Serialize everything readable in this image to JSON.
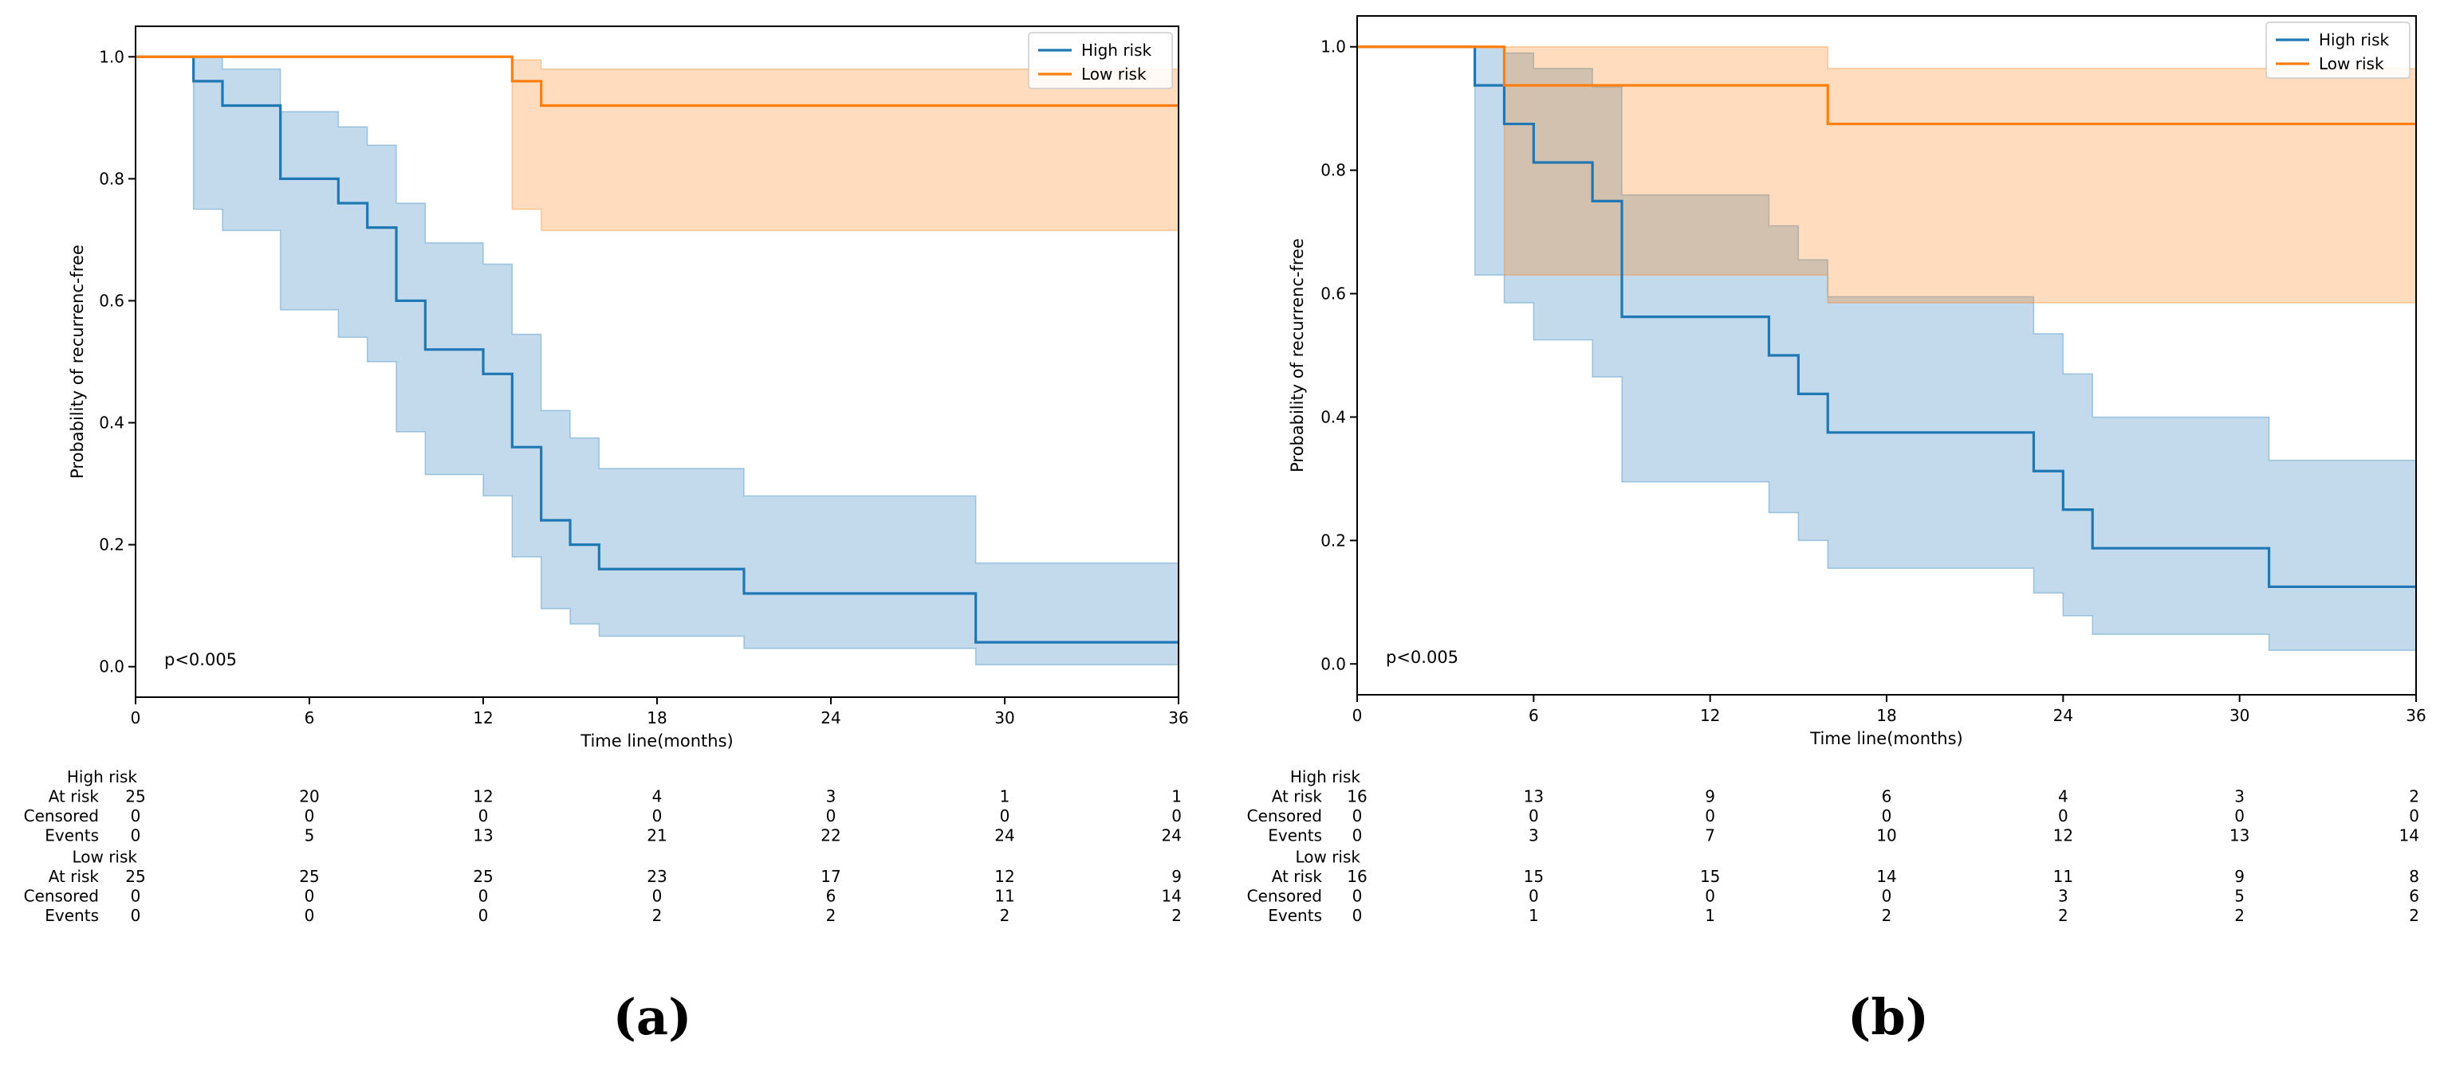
{
  "colors": {
    "high": "#1f77b4",
    "low": "#ff7f0e",
    "high_band": "#c4dcee",
    "low_band": "#ffdcbd",
    "overlap_band": "#d9bfb0"
  },
  "chart_data": [
    {
      "type": "line",
      "panel_label": "(a)",
      "xlabel": "Time line(months)",
      "ylabel": "Probability of recurrenc-free",
      "xlim": [
        0,
        36
      ],
      "ylim": [
        -0.05,
        1.05
      ],
      "xticks": [
        0,
        6,
        12,
        18,
        24,
        30,
        36
      ],
      "yticks": [
        0.0,
        0.2,
        0.4,
        0.6,
        0.8,
        1.0
      ],
      "pvalue": "p<0.005",
      "legend": {
        "placement": "top-right",
        "entries": [
          "High risk",
          "Low risk"
        ]
      },
      "series": [
        {
          "name": "High risk",
          "color_key": "high",
          "steps": [
            [
              0,
              1.0
            ],
            [
              2,
              0.96
            ],
            [
              3,
              0.92
            ],
            [
              5,
              0.8
            ],
            [
              7,
              0.76
            ],
            [
              8,
              0.72
            ],
            [
              9,
              0.6
            ],
            [
              10,
              0.52
            ],
            [
              12,
              0.48
            ],
            [
              13,
              0.36
            ],
            [
              14,
              0.24
            ],
            [
              15,
              0.2
            ],
            [
              16,
              0.16
            ],
            [
              21,
              0.12
            ],
            [
              29,
              0.04
            ],
            [
              36,
              0.04
            ]
          ],
          "ci_upper": [
            [
              0,
              1.0
            ],
            [
              2,
              1.0
            ],
            [
              3,
              0.98
            ],
            [
              5,
              0.91
            ],
            [
              7,
              0.885
            ],
            [
              8,
              0.855
            ],
            [
              9,
              0.76
            ],
            [
              10,
              0.695
            ],
            [
              12,
              0.66
            ],
            [
              13,
              0.545
            ],
            [
              14,
              0.42
            ],
            [
              15,
              0.375
            ],
            [
              16,
              0.325
            ],
            [
              21,
              0.28
            ],
            [
              29,
              0.17
            ],
            [
              36,
              0.17
            ]
          ],
          "ci_lower": [
            [
              0,
              1.0
            ],
            [
              2,
              0.75
            ],
            [
              3,
              0.715
            ],
            [
              5,
              0.585
            ],
            [
              7,
              0.54
            ],
            [
              8,
              0.5
            ],
            [
              9,
              0.385
            ],
            [
              10,
              0.315
            ],
            [
              12,
              0.28
            ],
            [
              13,
              0.18
            ],
            [
              14,
              0.095
            ],
            [
              15,
              0.07
            ],
            [
              16,
              0.05
            ],
            [
              21,
              0.03
            ],
            [
              29,
              0.003
            ],
            [
              36,
              0.003
            ]
          ]
        },
        {
          "name": "Low risk",
          "color_key": "low",
          "steps": [
            [
              0,
              1.0
            ],
            [
              13,
              0.96
            ],
            [
              14,
              0.92
            ],
            [
              36,
              0.92
            ]
          ],
          "ci_upper": [
            [
              0,
              1.0
            ],
            [
              13,
              0.995
            ],
            [
              14,
              0.98
            ],
            [
              36,
              0.98
            ]
          ],
          "ci_lower": [
            [
              0,
              1.0
            ],
            [
              13,
              0.75
            ],
            [
              14,
              0.715
            ],
            [
              36,
              0.715
            ]
          ]
        }
      ],
      "risk_table": {
        "timepoints": [
          0,
          6,
          12,
          18,
          24,
          30,
          36
        ],
        "groups": [
          {
            "name": "High risk",
            "rows": [
              {
                "label": "At risk",
                "values": [
                  "25",
                  "20",
                  "12",
                  "4",
                  "3",
                  "1",
                  "1"
                ]
              },
              {
                "label": "Censored",
                "values": [
                  "0",
                  "0",
                  "0",
                  "0",
                  "0",
                  "0",
                  "0"
                ]
              },
              {
                "label": "Events",
                "values": [
                  "0",
                  "5",
                  "13",
                  "21",
                  "22",
                  "24",
                  "24"
                ]
              }
            ]
          },
          {
            "name": "Low risk",
            "rows": [
              {
                "label": "At risk",
                "values": [
                  "25",
                  "25",
                  "25",
                  "23",
                  "17",
                  "12",
                  "9"
                ]
              },
              {
                "label": "Censored",
                "values": [
                  "0",
                  "0",
                  "0",
                  "0",
                  "6",
                  "11",
                  "14"
                ]
              },
              {
                "label": "Events",
                "values": [
                  "0",
                  "0",
                  "0",
                  "2",
                  "2",
                  "2",
                  "2"
                ]
              }
            ]
          }
        ]
      }
    },
    {
      "type": "line",
      "panel_label": "(b)",
      "xlabel": "Time line(months)",
      "ylabel": "Probability of recurrenc-free",
      "xlim": [
        0,
        36
      ],
      "ylim": [
        -0.05,
        1.05
      ],
      "xticks": [
        0,
        6,
        12,
        18,
        24,
        30,
        36
      ],
      "yticks": [
        0.0,
        0.2,
        0.4,
        0.6,
        0.8,
        1.0
      ],
      "pvalue": "p<0.005",
      "legend": {
        "placement": "top-right",
        "entries": [
          "High risk",
          "Low risk"
        ]
      },
      "series": [
        {
          "name": "High risk",
          "color_key": "high",
          "steps": [
            [
              0,
              1.0
            ],
            [
              4,
              0.9375
            ],
            [
              5,
              0.875
            ],
            [
              6,
              0.8125
            ],
            [
              8,
              0.75
            ],
            [
              9,
              0.5625
            ],
            [
              14,
              0.5
            ],
            [
              15,
              0.4375
            ],
            [
              16,
              0.375
            ],
            [
              23,
              0.3125
            ],
            [
              24,
              0.25
            ],
            [
              25,
              0.1875
            ],
            [
              31,
              0.125
            ],
            [
              36,
              0.125
            ]
          ],
          "ci_upper": [
            [
              0,
              1.0
            ],
            [
              4,
              1.0
            ],
            [
              5,
              0.99
            ],
            [
              6,
              0.965
            ],
            [
              8,
              0.935
            ],
            [
              9,
              0.76
            ],
            [
              14,
              0.71
            ],
            [
              15,
              0.655
            ],
            [
              16,
              0.595
            ],
            [
              23,
              0.535
            ],
            [
              24,
              0.47
            ],
            [
              25,
              0.4
            ],
            [
              31,
              0.33
            ],
            [
              36,
              0.33
            ]
          ],
          "ci_lower": [
            [
              0,
              1.0
            ],
            [
              4,
              0.63
            ],
            [
              5,
              0.585
            ],
            [
              6,
              0.525
            ],
            [
              8,
              0.465
            ],
            [
              9,
              0.295
            ],
            [
              14,
              0.245
            ],
            [
              15,
              0.2
            ],
            [
              16,
              0.155
            ],
            [
              23,
              0.115
            ],
            [
              24,
              0.078
            ],
            [
              25,
              0.048
            ],
            [
              31,
              0.022
            ],
            [
              36,
              0.022
            ]
          ]
        },
        {
          "name": "Low risk",
          "color_key": "low",
          "steps": [
            [
              0,
              1.0
            ],
            [
              5,
              0.9375
            ],
            [
              16,
              0.875
            ],
            [
              36,
              0.875
            ]
          ],
          "ci_upper": [
            [
              0,
              1.0
            ],
            [
              5,
              1.0
            ],
            [
              16,
              0.965
            ],
            [
              36,
              0.965
            ]
          ],
          "ci_lower": [
            [
              0,
              1.0
            ],
            [
              5,
              0.63
            ],
            [
              16,
              0.585
            ],
            [
              36,
              0.585
            ]
          ]
        }
      ],
      "risk_table": {
        "timepoints": [
          0,
          6,
          12,
          18,
          24,
          30,
          36
        ],
        "groups": [
          {
            "name": "High risk",
            "rows": [
              {
                "label": "At risk",
                "values": [
                  "16",
                  "13",
                  "9",
                  "6",
                  "4",
                  "3",
                  "2"
                ]
              },
              {
                "label": "Censored",
                "values": [
                  "0",
                  "0",
                  "0",
                  "0",
                  "0",
                  "0",
                  "0"
                ]
              },
              {
                "label": "Events",
                "values": [
                  "0",
                  "3",
                  "7",
                  "10",
                  "12",
                  "13",
                  "14"
                ]
              }
            ]
          },
          {
            "name": "Low risk",
            "rows": [
              {
                "label": "At risk",
                "values": [
                  "16",
                  "15",
                  "15",
                  "14",
                  "11",
                  "9",
                  "8"
                ]
              },
              {
                "label": "Censored",
                "values": [
                  "0",
                  "0",
                  "0",
                  "0",
                  "3",
                  "5",
                  "6"
                ]
              },
              {
                "label": "Events",
                "values": [
                  "0",
                  "1",
                  "1",
                  "2",
                  "2",
                  "2",
                  "2"
                ]
              }
            ]
          }
        ]
      }
    }
  ]
}
